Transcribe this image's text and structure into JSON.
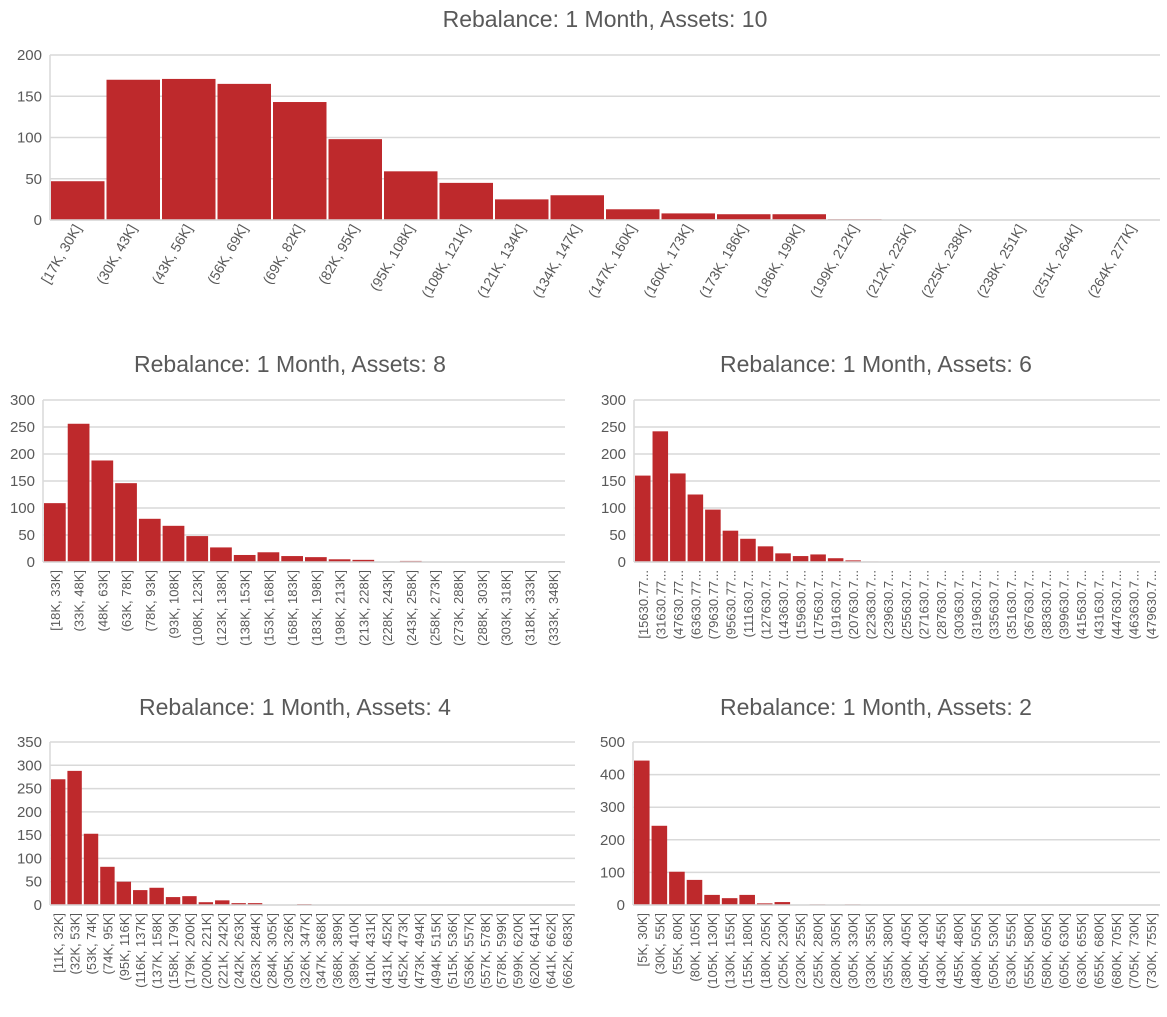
{
  "colors": {
    "bar": "#BE292C",
    "grid": "#D9D9D9",
    "text": "#595959"
  },
  "chart_data": [
    {
      "type": "bar",
      "title": "Rebalance: 1 Month, Assets: 10",
      "ylim": [
        0,
        200
      ],
      "yticks": [
        0,
        50,
        100,
        150,
        200
      ],
      "grid": true,
      "categories": [
        "[17K, 30K]",
        "(30K, 43K]",
        "(43K, 56K]",
        "(56K, 69K]",
        "(69K, 82K]",
        "(82K, 95K]",
        "(95K, 108K]",
        "(108K, 121K]",
        "(121K, 134K]",
        "(134K, 147K]",
        "(147K, 160K]",
        "(160K, 173K]",
        "(173K, 186K]",
        "(186K, 199K]",
        "(199K, 212K]",
        "(212K, 225K]",
        "(225K, 238K]",
        "(238K, 251K]",
        "(251K, 264K]",
        "(264K, 277K]"
      ],
      "values": [
        47,
        170,
        171,
        165,
        143,
        98,
        59,
        45,
        25,
        30,
        13,
        8,
        7,
        7,
        1,
        0,
        0,
        0,
        0,
        0
      ]
    },
    {
      "type": "bar",
      "title": "Rebalance: 1 Month, Assets: 8",
      "ylim": [
        0,
        300
      ],
      "yticks": [
        0,
        50,
        100,
        150,
        200,
        250,
        300
      ],
      "grid": true,
      "categories": [
        "[18K, 33K]",
        "(33K, 48K]",
        "(48K, 63K]",
        "(63K, 78K]",
        "(78K, 93K]",
        "(93K, 108K]",
        "(108K, 123K]",
        "(123K, 138K]",
        "(138K, 153K]",
        "(153K, 168K]",
        "(168K, 183K]",
        "(183K, 198K]",
        "(198K, 213K]",
        "(213K, 228K]",
        "(228K, 243K]",
        "(243K, 258K]",
        "(258K, 273K]",
        "(273K, 288K]",
        "(288K, 303K]",
        "(303K, 318K]",
        "(318K, 333K]",
        "(333K, 348K]"
      ],
      "values": [
        109,
        256,
        188,
        146,
        80,
        67,
        48,
        27,
        13,
        18,
        11,
        9,
        5,
        4,
        0,
        2,
        0,
        0,
        0,
        0,
        0,
        0
      ]
    },
    {
      "type": "bar",
      "title": "Rebalance: 1 Month, Assets: 6",
      "ylim": [
        0,
        300
      ],
      "yticks": [
        0,
        50,
        100,
        150,
        200,
        250,
        300
      ],
      "grid": true,
      "categories": [
        "[15630.77...",
        "(31630.77...",
        "(47630.77...",
        "(63630.77...",
        "(79630.77...",
        "(95630.77...",
        "(111630.7...",
        "(127630.7...",
        "(143630.7...",
        "(159630.7...",
        "(175630.7...",
        "(191630.7...",
        "(207630.7...",
        "(223630.7...",
        "(239630.7...",
        "(255630.7...",
        "(271630.7...",
        "(287630.7...",
        "(303630.7...",
        "(319630.7...",
        "(335630.7...",
        "(351630.7...",
        "(367630.7...",
        "(383630.7...",
        "(399630.7...",
        "(415630.7...",
        "(431630.7...",
        "(447630.7...",
        "(463630.7...",
        "(479630.7..."
      ],
      "values": [
        160,
        242,
        164,
        125,
        97,
        58,
        43,
        29,
        16,
        11,
        14,
        7,
        3,
        1,
        0,
        0,
        0,
        0,
        0,
        0,
        0,
        0,
        0,
        0,
        0,
        0,
        0,
        0,
        0,
        0
      ]
    },
    {
      "type": "bar",
      "title": "Rebalance: 1 Month, Assets: 4",
      "ylim": [
        0,
        350
      ],
      "yticks": [
        0,
        50,
        100,
        150,
        200,
        250,
        300,
        350
      ],
      "grid": true,
      "categories": [
        "[11K, 32K]",
        "(32K, 53K]",
        "(53K, 74K]",
        "(74K, 95K]",
        "(95K, 116K]",
        "(116K, 137K]",
        "(137K, 158K]",
        "(158K, 179K]",
        "(179K, 200K]",
        "(200K, 221K]",
        "(221K, 242K]",
        "(242K, 263K]",
        "(263K, 284K]",
        "(284K, 305K]",
        "(305K, 326K]",
        "(326K, 347K]",
        "(347K, 368K]",
        "(368K, 389K]",
        "(389K, 410K]",
        "(410K, 431K]",
        "(431K, 452K]",
        "(452K, 473K]",
        "(473K, 494K]",
        "(494K, 515K]",
        "(515K, 536K]",
        "(536K, 557K]",
        "(557K, 578K]",
        "(578K, 599K]",
        "(599K, 620K]",
        "(620K, 641K]",
        "(641K, 662K]",
        "(662K, 683K]"
      ],
      "values": [
        270,
        288,
        153,
        82,
        50,
        32,
        37,
        17,
        19,
        6,
        10,
        4,
        4,
        0,
        0,
        2,
        0,
        0,
        0,
        0,
        0,
        0,
        0,
        0,
        0,
        0,
        0,
        0,
        0,
        0,
        0,
        0
      ]
    },
    {
      "type": "bar",
      "title": "Rebalance: 1 Month, Assets: 2",
      "ylim": [
        0,
        500
      ],
      "yticks": [
        0,
        100,
        200,
        300,
        400,
        500
      ],
      "grid": true,
      "categories": [
        "[5K, 30K]",
        "(30K, 55K]",
        "(55K, 80K]",
        "(80K, 105K]",
        "(105K, 130K]",
        "(130K, 155K]",
        "(155K, 180K]",
        "(180K, 205K]",
        "(205K, 230K]",
        "(230K, 255K]",
        "(255K, 280K]",
        "(280K, 305K]",
        "(305K, 330K]",
        "(330K, 355K]",
        "(355K, 380K]",
        "(380K, 405K]",
        "(405K, 430K]",
        "(430K, 455K]",
        "(455K, 480K]",
        "(480K, 505K]",
        "(505K, 530K]",
        "(530K, 555K]",
        "(555K, 580K]",
        "(580K, 605K]",
        "(605K, 630K]",
        "(630K, 655K]",
        "(655K, 680K]",
        "(680K, 705K]",
        "(705K, 730K]",
        "(730K, 755K]"
      ],
      "values": [
        443,
        243,
        102,
        77,
        31,
        21,
        31,
        5,
        9,
        0,
        2,
        0,
        2,
        0,
        0,
        0,
        0,
        0,
        0,
        0,
        0,
        0,
        0,
        0,
        0,
        0,
        0,
        0,
        0,
        0
      ]
    }
  ]
}
